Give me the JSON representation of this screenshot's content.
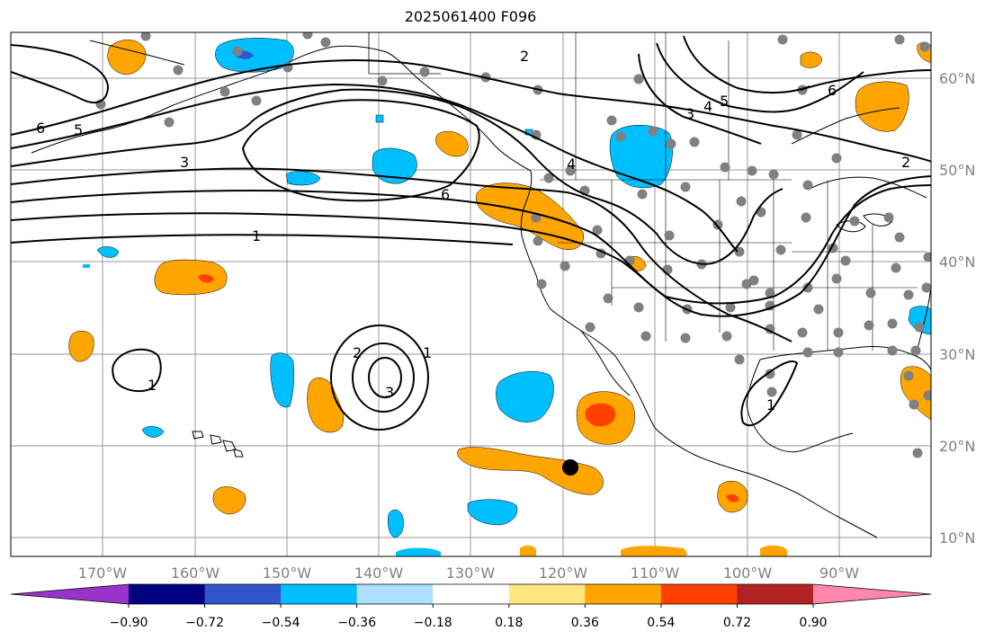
{
  "title": "2025061400 F096",
  "lon_labels": [
    "170°W",
    "160°W",
    "150°W",
    "140°W",
    "130°W",
    "120°W",
    "110°W",
    "100°W",
    "90°W"
  ],
  "lat_labels": [
    "60°N",
    "50°N",
    "40°N",
    "30°N",
    "20°N",
    "10°N"
  ],
  "colorbar": {
    "tick_labels": [
      "−0.90",
      "−0.72",
      "−0.54",
      "−0.36",
      "−0.18",
      "0.18",
      "0.36",
      "0.54",
      "0.72",
      "0.90"
    ],
    "colors": [
      "#9933cc",
      "#000080",
      "#3355cc",
      "#00bfff",
      "#b0e0ff",
      "#ffffff",
      "#ffe680",
      "#ffa500",
      "#ff4000",
      "#b22222",
      "#ff88aa"
    ]
  },
  "contour_labels": [
    "6",
    "5",
    "2",
    "3",
    "4",
    "5",
    "6",
    "2",
    "6",
    "3",
    "4",
    "1",
    "2",
    "3",
    "1",
    "1",
    "1"
  ],
  "colors": {
    "land_line": "#000000",
    "grid": "#999999",
    "station": "#808080"
  }
}
